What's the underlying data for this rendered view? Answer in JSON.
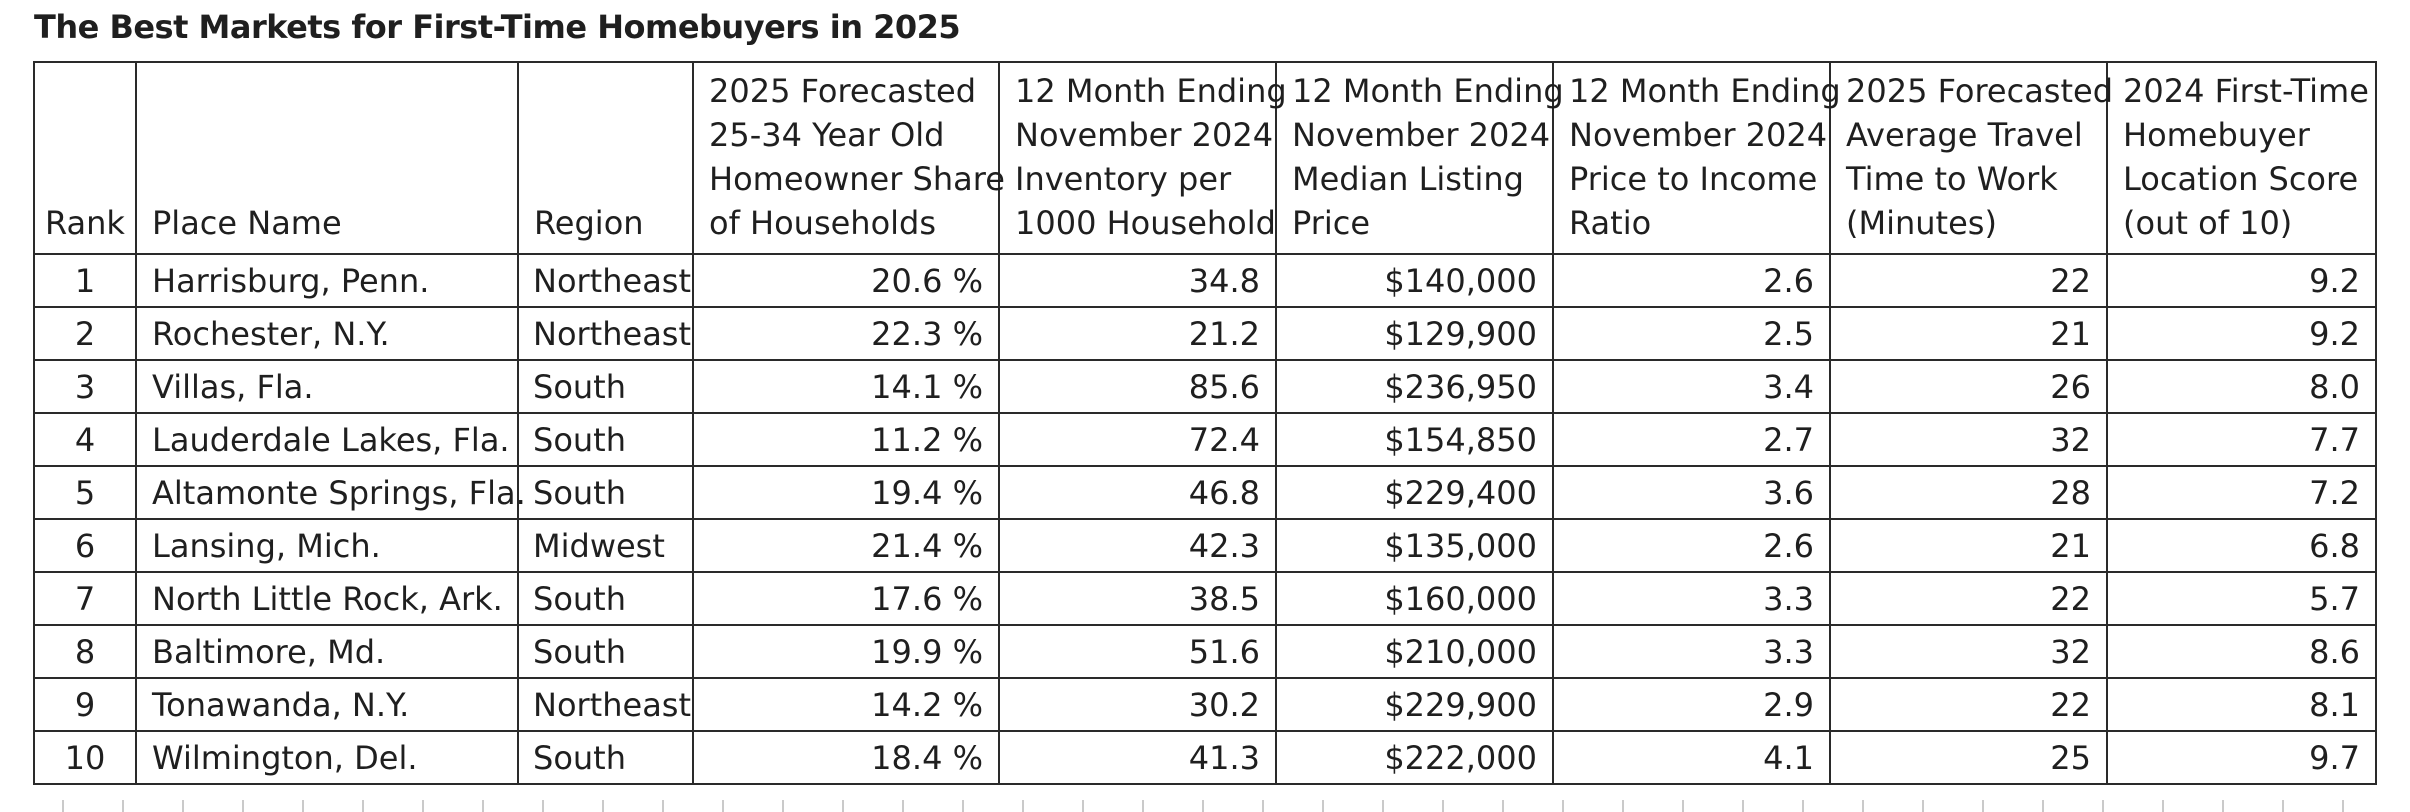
{
  "title": "The Best Markets for First-Time Homebuyers in 2025",
  "headers": {
    "rank": [
      "Rank"
    ],
    "place_name": [
      "Place Name"
    ],
    "region": [
      "Region"
    ],
    "homeowner_share": [
      "2025 Forecasted",
      "25-34 Year Old",
      "Homeowner Share",
      "of Households"
    ],
    "inventory": [
      "12 Month Ending",
      "November 2024",
      "Inventory per",
      "1000 Household"
    ],
    "median_price": [
      "12 Month Ending",
      "November 2024",
      "Median Listing",
      "Price"
    ],
    "price_income": [
      "12 Month Ending",
      "November 2024",
      "Price to Income",
      "Ratio"
    ],
    "travel_time": [
      "2025 Forecasted",
      "Average Travel",
      "Time to Work",
      "(Minutes)"
    ],
    "location_score": [
      "2024 First-Time",
      "Homebuyer",
      "Location Score",
      "(out of 10)"
    ]
  },
  "rows": [
    {
      "rank": "1",
      "place": "Harrisburg, Penn.",
      "region": "Northeast",
      "share": "20.6 %",
      "inventory": "34.8",
      "price": "$140,000",
      "ratio": "2.6",
      "travel": "22",
      "score": "9.2"
    },
    {
      "rank": "2",
      "place": "Rochester, N.Y.",
      "region": "Northeast",
      "share": "22.3 %",
      "inventory": "21.2",
      "price": "$129,900",
      "ratio": "2.5",
      "travel": "21",
      "score": "9.2"
    },
    {
      "rank": "3",
      "place": "Villas, Fla.",
      "region": "South",
      "share": "14.1 %",
      "inventory": "85.6",
      "price": "$236,950",
      "ratio": "3.4",
      "travel": "26",
      "score": "8.0"
    },
    {
      "rank": "4",
      "place": "Lauderdale Lakes, Fla.",
      "region": "South",
      "share": "11.2 %",
      "inventory": "72.4",
      "price": "$154,850",
      "ratio": "2.7",
      "travel": "32",
      "score": "7.7"
    },
    {
      "rank": "5",
      "place": "Altamonte Springs, Fla.",
      "region": "South",
      "share": "19.4 %",
      "inventory": "46.8",
      "price": "$229,400",
      "ratio": "3.6",
      "travel": "28",
      "score": "7.2"
    },
    {
      "rank": "6",
      "place": "Lansing, Mich.",
      "region": "Midwest",
      "share": "21.4 %",
      "inventory": "42.3",
      "price": "$135,000",
      "ratio": "2.6",
      "travel": "21",
      "score": "6.8"
    },
    {
      "rank": "7",
      "place": "North Little Rock, Ark.",
      "region": "South",
      "share": "17.6 %",
      "inventory": "38.5",
      "price": "$160,000",
      "ratio": "3.3",
      "travel": "22",
      "score": "5.7"
    },
    {
      "rank": "8",
      "place": "Baltimore, Md.",
      "region": "South",
      "share": "19.9 %",
      "inventory": "51.6",
      "price": "$210,000",
      "ratio": "3.3",
      "travel": "32",
      "score": "8.6"
    },
    {
      "rank": "9",
      "place": "Tonawanda, N.Y.",
      "region": "Northeast",
      "share": "14.2 %",
      "inventory": "30.2",
      "price": "$229,900",
      "ratio": "2.9",
      "travel": "22",
      "score": "8.1"
    },
    {
      "rank": "10",
      "place": "Wilmington, Del.",
      "region": "South",
      "share": "18.4 %",
      "inventory": "41.3",
      "price": "$222,000",
      "ratio": "4.1",
      "travel": "25",
      "score": "9.7"
    }
  ]
}
